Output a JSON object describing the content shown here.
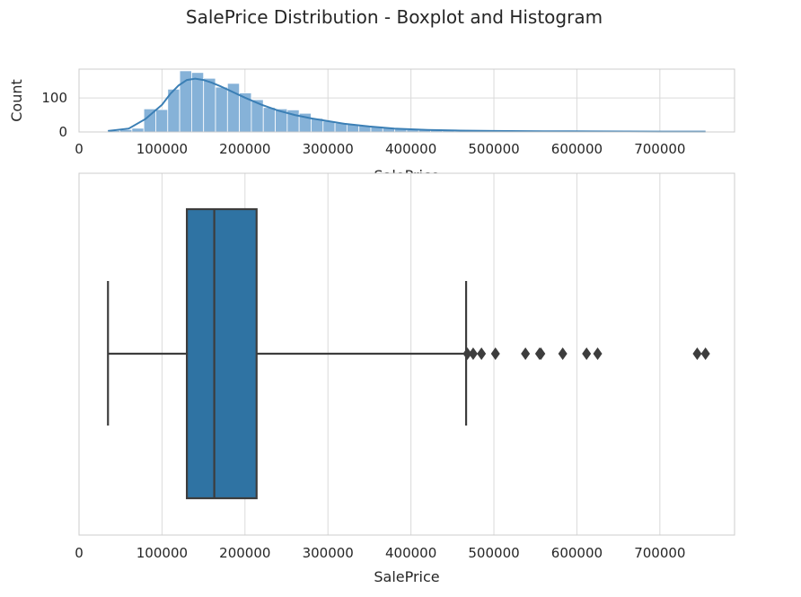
{
  "title": "SalePrice Distribution - Boxplot and Histogram",
  "colors": {
    "box_fill": "#2f73a3",
    "hist_bar": "#86b2d8",
    "kde_line": "#3b7fb5",
    "grid": "#dadada",
    "spine": "#cccccc",
    "box_edge": "#3d3d3d"
  },
  "chart_data": [
    {
      "type": "histogram",
      "xlabel": "SalePrice",
      "ylabel": "Count",
      "xlim": [
        0,
        790000
      ],
      "ylim": [
        0,
        185
      ],
      "xticks": [
        0,
        100000,
        200000,
        300000,
        400000,
        500000,
        600000,
        700000
      ],
      "xtick_labels": [
        "0",
        "100000",
        "200000",
        "300000",
        "400000",
        "500000",
        "600000",
        "700000"
      ],
      "yticks": [
        0,
        100
      ],
      "ytick_labels": [
        "0",
        "100"
      ],
      "grid": true,
      "bin_start": 34900,
      "bin_width": 14400,
      "counts": [
        4,
        7,
        11,
        68,
        66,
        126,
        180,
        175,
        158,
        132,
        143,
        115,
        95,
        72,
        68,
        65,
        55,
        40,
        32,
        26,
        22,
        19,
        16,
        12,
        10,
        7,
        7,
        5,
        4,
        3,
        3,
        2,
        2,
        2,
        1,
        1,
        1,
        1,
        1,
        1,
        1,
        1,
        1,
        1,
        1,
        1,
        1,
        1,
        1,
        2
      ],
      "kde": {
        "x": [
          34900,
          60000,
          80000,
          100000,
          110000,
          120000,
          130000,
          140000,
          150000,
          160000,
          170000,
          180000,
          200000,
          220000,
          240000,
          260000,
          280000,
          300000,
          320000,
          350000,
          380000,
          420000,
          460000,
          500000,
          560000,
          620000,
          700000,
          755000
        ],
        "y": [
          3,
          10,
          38,
          80,
          112,
          137,
          153,
          157,
          153,
          145,
          135,
          124,
          101,
          80,
          63,
          50,
          40,
          32,
          24,
          16,
          10,
          6,
          4,
          3,
          2,
          1.5,
          1,
          1
        ]
      }
    },
    {
      "type": "boxplot",
      "xlabel": "SalePrice",
      "xlim": [
        0,
        790000
      ],
      "xticks": [
        0,
        100000,
        200000,
        300000,
        400000,
        500000,
        600000,
        700000
      ],
      "xtick_labels": [
        "0",
        "100000",
        "200000",
        "300000",
        "400000",
        "500000",
        "600000",
        "700000"
      ],
      "grid": true,
      "whisker_low": 34900,
      "q1": 129975,
      "median": 163000,
      "q3": 214000,
      "whisker_high": 466500,
      "outliers": [
        468000,
        475000,
        485000,
        501837,
        538000,
        555000,
        556581,
        582933,
        611657,
        625000,
        745000,
        755000
      ]
    }
  ]
}
